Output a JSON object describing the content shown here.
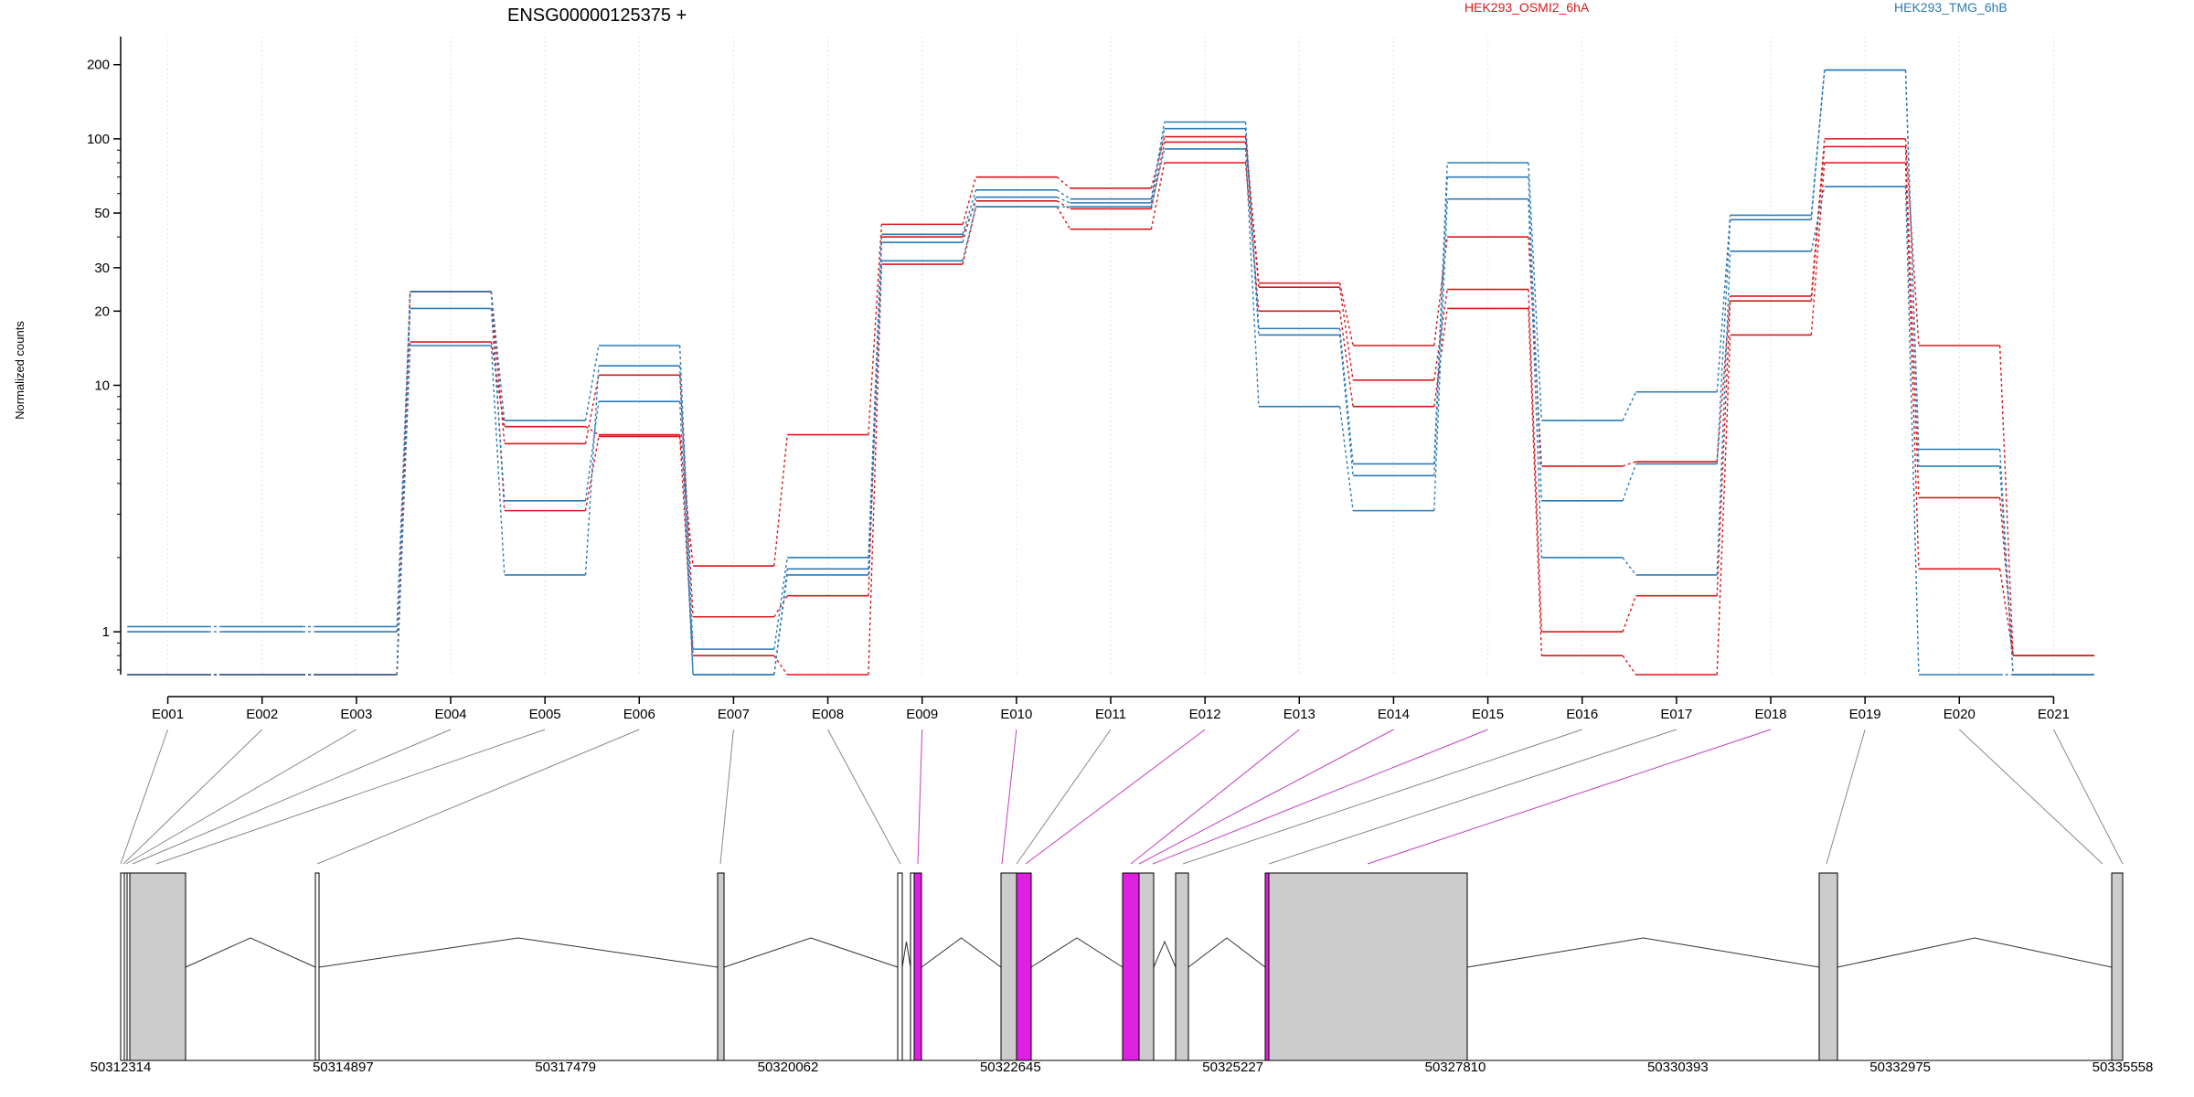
{
  "figure": {
    "title": "ENSG00000125375 +",
    "ylabel": "Normalized counts",
    "legend": [
      {
        "label": "HEK293_OSMI2_6hA",
        "color": "#d7191c"
      },
      {
        "label": "HEK293_TMG_6hB",
        "color": "#2c7bb6"
      }
    ]
  },
  "chart_data": {
    "type": "line",
    "title": "ENSG00000125375 +",
    "xlabel": "",
    "ylabel": "Normalized counts",
    "y_scale": "log",
    "ylim": [
      0.67,
      260
    ],
    "y_ticks": [
      1,
      10,
      20,
      30,
      50,
      100,
      200
    ],
    "grid": "vertical dotted at exon centers",
    "legend_position": "top-right",
    "categories": [
      "E001",
      "E002",
      "E003",
      "E004",
      "E005",
      "E006",
      "E007",
      "E008",
      "E009",
      "E010",
      "E011",
      "E012",
      "E013",
      "E014",
      "E015",
      "E016",
      "E017",
      "E018",
      "E019",
      "E020",
      "E021"
    ],
    "series": [
      {
        "name": "HEK293_OSMI2_6hA",
        "color": "#d7191c",
        "values": [
          0.67,
          0.67,
          0.67,
          15,
          6.8,
          6.3,
          1.85,
          6.3,
          45,
          70,
          63,
          102,
          26,
          14.5,
          40,
          4.7,
          4.9,
          23,
          100,
          14.5,
          0.8
        ]
      },
      {
        "name": "HEK293_OSMI2_6hA",
        "color": "#d7191c",
        "values": [
          0.67,
          0.67,
          0.67,
          24,
          5.8,
          11,
          1.15,
          1.4,
          40,
          56,
          52,
          97,
          25,
          10.5,
          24.5,
          1.0,
          1.4,
          22,
          93,
          3.5,
          0.8
        ]
      },
      {
        "name": "HEK293_OSMI2_6hA",
        "color": "#d7191c",
        "values": [
          0.67,
          0.67,
          0.67,
          24,
          3.1,
          6.2,
          0.8,
          0.67,
          31,
          53,
          43,
          80,
          20,
          8.2,
          20.5,
          0.8,
          0.67,
          16,
          80,
          1.8,
          0.8
        ]
      },
      {
        "name": "HEK293_TMG_6hB",
        "color": "#2c7bb6",
        "values": [
          1.05,
          1.05,
          1.05,
          24,
          7.2,
          14.5,
          0.85,
          2.0,
          41,
          62,
          57,
          117,
          17,
          4.8,
          80,
          7.2,
          9.4,
          49,
          190,
          5.5,
          0.67
        ]
      },
      {
        "name": "HEK293_TMG_6hB",
        "color": "#2c7bb6",
        "values": [
          1.0,
          1.0,
          1.0,
          20.5,
          3.4,
          8.6,
          0.67,
          1.8,
          38,
          58,
          55,
          110,
          16,
          4.3,
          70,
          3.4,
          4.8,
          47,
          190,
          4.7,
          0.67
        ]
      },
      {
        "name": "HEK293_TMG_6hB",
        "color": "#2c7bb6",
        "values": [
          0.67,
          0.67,
          0.67,
          14.5,
          1.7,
          12,
          0.67,
          1.7,
          32,
          53,
          53,
          91,
          8.2,
          3.1,
          57,
          2.0,
          1.7,
          35,
          64,
          0.67,
          0.67
        ]
      }
    ],
    "gene_model": {
      "coordinate_ticks": [
        "50312314",
        "50314897",
        "50317479",
        "50320062",
        "50322645",
        "50325227",
        "50327810",
        "50330393",
        "50332975",
        "50335558"
      ],
      "highlight_color": "#e020e0",
      "exon_fill": "#cccccc",
      "highlighted_exons": [
        "E009",
        "E010",
        "E012",
        "E013",
        "E014",
        "E015",
        "E018"
      ]
    }
  }
}
